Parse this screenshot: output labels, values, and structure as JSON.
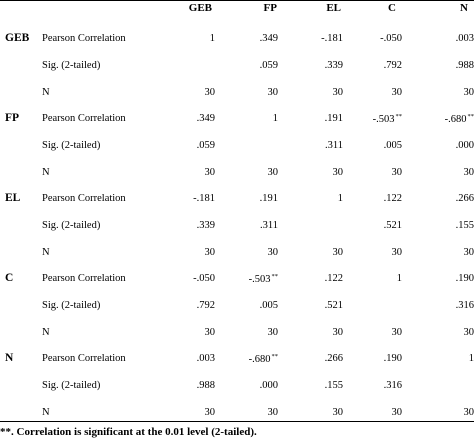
{
  "columns": [
    "GEB",
    "FP",
    "EL",
    "C",
    "N"
  ],
  "stat_labels": {
    "pearson": "Pearson Correlation",
    "sig": "Sig. (2-tailed)",
    "n": "N"
  },
  "rows": [
    {
      "variable": "GEB",
      "pearson": [
        "1",
        ".349",
        "-.181",
        "-.050",
        ".003"
      ],
      "sig": [
        "",
        ".059",
        ".339",
        ".792",
        ".988"
      ],
      "n": [
        "30",
        "30",
        "30",
        "30",
        "30"
      ]
    },
    {
      "variable": "FP",
      "pearson": [
        ".349",
        "1",
        ".191",
        "-.503**",
        "-.680**"
      ],
      "sig": [
        ".059",
        "",
        ".311",
        ".005",
        ".000"
      ],
      "n": [
        "30",
        "30",
        "30",
        "30",
        "30"
      ]
    },
    {
      "variable": "EL",
      "pearson": [
        "-.181",
        ".191",
        "1",
        ".122",
        ".266"
      ],
      "sig": [
        ".339",
        ".311",
        "",
        ".521",
        ".155"
      ],
      "n": [
        "30",
        "30",
        "30",
        "30",
        "30"
      ]
    },
    {
      "variable": "C",
      "pearson": [
        "-.050",
        "-.503**",
        ".122",
        "1",
        ".190"
      ],
      "sig": [
        ".792",
        ".005",
        ".521",
        "",
        ".316"
      ],
      "n": [
        "30",
        "30",
        "30",
        "30",
        "30"
      ]
    },
    {
      "variable": "N",
      "pearson": [
        ".003",
        "-.680**",
        ".266",
        ".190",
        "1"
      ],
      "sig": [
        ".988",
        ".000",
        ".155",
        ".316",
        ""
      ],
      "n": [
        "30",
        "30",
        "30",
        "30",
        "30"
      ]
    }
  ],
  "footnote": "**. Correlation is significant at the 0.01 level (2-tailed)."
}
